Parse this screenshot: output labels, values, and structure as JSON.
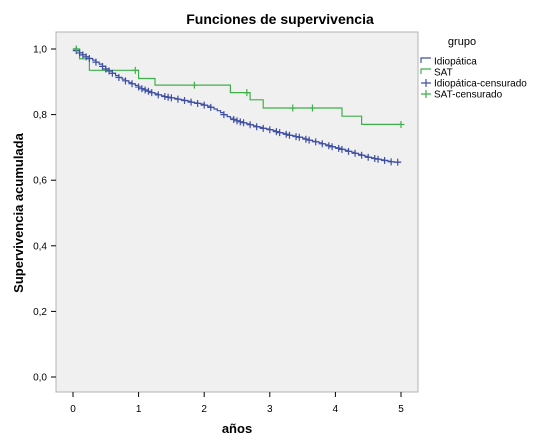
{
  "chart_data": {
    "type": "line",
    "title": "Funciones de supervivencia",
    "xlabel": "años",
    "ylabel": "Supervivencia acumulada",
    "xlim": [
      0,
      5
    ],
    "ylim": [
      0,
      1
    ],
    "x_ticks": [
      "0",
      "1",
      "2",
      "3",
      "4",
      "5"
    ],
    "y_ticks": [
      "0,0",
      "0,2",
      "0,4",
      "0,6",
      "0,8",
      "1,0"
    ],
    "x_tick_values": [
      0,
      1,
      2,
      3,
      4,
      5
    ],
    "y_tick_values": [
      0,
      0.2,
      0.4,
      0.6,
      0.8,
      1.0
    ],
    "grid": false,
    "legend": {
      "title": "grupo",
      "placement": "top-right",
      "entries": [
        "Idiopática",
        "SAT",
        "Idiopática-censurado",
        "SAT-censurado"
      ]
    },
    "colors": {
      "Idiopática": "#3f4fa3",
      "SAT": "#3eb04a"
    },
    "series": [
      {
        "name": "Idiopática",
        "kind": "survival-step",
        "color": "#3f4fa3",
        "x": [
          0,
          0.05,
          0.1,
          0.15,
          0.2,
          0.25,
          0.3,
          0.35,
          0.4,
          0.45,
          0.5,
          0.55,
          0.6,
          0.65,
          0.7,
          0.75,
          0.8,
          0.85,
          0.9,
          0.95,
          1.0,
          1.05,
          1.1,
          1.15,
          1.2,
          1.25,
          1.3,
          1.35,
          1.4,
          1.45,
          1.5,
          1.55,
          1.6,
          1.65,
          1.7,
          1.75,
          1.8,
          1.85,
          1.9,
          1.95,
          2.0,
          2.05,
          2.1,
          2.15,
          2.2,
          2.25,
          2.3,
          2.35,
          2.4,
          2.45,
          2.5,
          2.55,
          2.6,
          2.65,
          2.7,
          2.75,
          2.8,
          2.85,
          2.9,
          2.95,
          3.0,
          3.05,
          3.1,
          3.15,
          3.2,
          3.25,
          3.3,
          3.35,
          3.4,
          3.45,
          3.5,
          3.55,
          3.6,
          3.65,
          3.7,
          3.75,
          3.8,
          3.85,
          3.9,
          3.95,
          4.0,
          4.05,
          4.1,
          4.15,
          4.2,
          4.25,
          4.3,
          4.35,
          4.4,
          4.45,
          4.5,
          4.55,
          4.6,
          4.65,
          4.7,
          4.75,
          4.8,
          4.85,
          4.9,
          4.95,
          5.0
        ],
        "y": [
          1.0,
          0.995,
          0.988,
          0.982,
          0.976,
          0.971,
          0.966,
          0.96,
          0.954,
          0.947,
          0.939,
          0.933,
          0.926,
          0.919,
          0.913,
          0.908,
          0.903,
          0.898,
          0.894,
          0.889,
          0.884,
          0.879,
          0.875,
          0.871,
          0.867,
          0.863,
          0.86,
          0.857,
          0.855,
          0.853,
          0.851,
          0.849,
          0.847,
          0.845,
          0.843,
          0.841,
          0.838,
          0.836,
          0.834,
          0.832,
          0.829,
          0.826,
          0.822,
          0.817,
          0.812,
          0.806,
          0.8,
          0.794,
          0.789,
          0.785,
          0.781,
          0.778,
          0.775,
          0.772,
          0.769,
          0.766,
          0.763,
          0.761,
          0.758,
          0.756,
          0.754,
          0.751,
          0.748,
          0.745,
          0.743,
          0.74,
          0.737,
          0.735,
          0.733,
          0.731,
          0.728,
          0.725,
          0.722,
          0.719,
          0.717,
          0.714,
          0.711,
          0.708,
          0.705,
          0.702,
          0.699,
          0.697,
          0.694,
          0.691,
          0.688,
          0.685,
          0.682,
          0.679,
          0.676,
          0.673,
          0.67,
          0.668,
          0.666,
          0.664,
          0.662,
          0.66,
          0.658,
          0.656,
          0.655,
          0.655,
          0.655
        ]
      },
      {
        "name": "SAT",
        "kind": "survival-step",
        "color": "#3eb04a",
        "x": [
          0,
          0.1,
          0.25,
          0.75,
          1.0,
          1.25,
          2.4,
          2.7,
          2.9,
          3.15,
          4.1,
          4.4,
          5.0
        ],
        "y": [
          1.0,
          0.97,
          0.935,
          0.935,
          0.91,
          0.89,
          0.867,
          0.845,
          0.82,
          0.82,
          0.795,
          0.77,
          0.77
        ]
      },
      {
        "name": "Idiopática-censurado",
        "kind": "censor-marks",
        "series_ref": "Idiopática",
        "color": "#3f4fa3",
        "x": [
          0.05,
          0.1,
          0.15,
          0.2,
          0.25,
          0.35,
          0.45,
          0.5,
          0.55,
          0.6,
          0.7,
          0.8,
          0.9,
          1.0,
          1.05,
          1.1,
          1.15,
          1.2,
          1.3,
          1.4,
          1.45,
          1.5,
          1.6,
          1.7,
          1.8,
          1.9,
          2.0,
          2.1,
          2.3,
          2.45,
          2.5,
          2.55,
          2.6,
          2.7,
          2.8,
          2.9,
          3.0,
          3.1,
          3.15,
          3.25,
          3.3,
          3.4,
          3.45,
          3.55,
          3.6,
          3.7,
          3.8,
          3.9,
          3.95,
          4.05,
          4.1,
          4.2,
          4.3,
          4.4,
          4.5,
          4.6,
          4.65,
          4.75,
          4.85,
          4.95
        ]
      },
      {
        "name": "SAT-censurado",
        "kind": "censor-marks",
        "series_ref": "SAT",
        "color": "#3eb04a",
        "x": [
          0.05,
          0.95,
          1.85,
          2.65,
          3.35,
          3.65,
          5.0
        ]
      }
    ]
  }
}
